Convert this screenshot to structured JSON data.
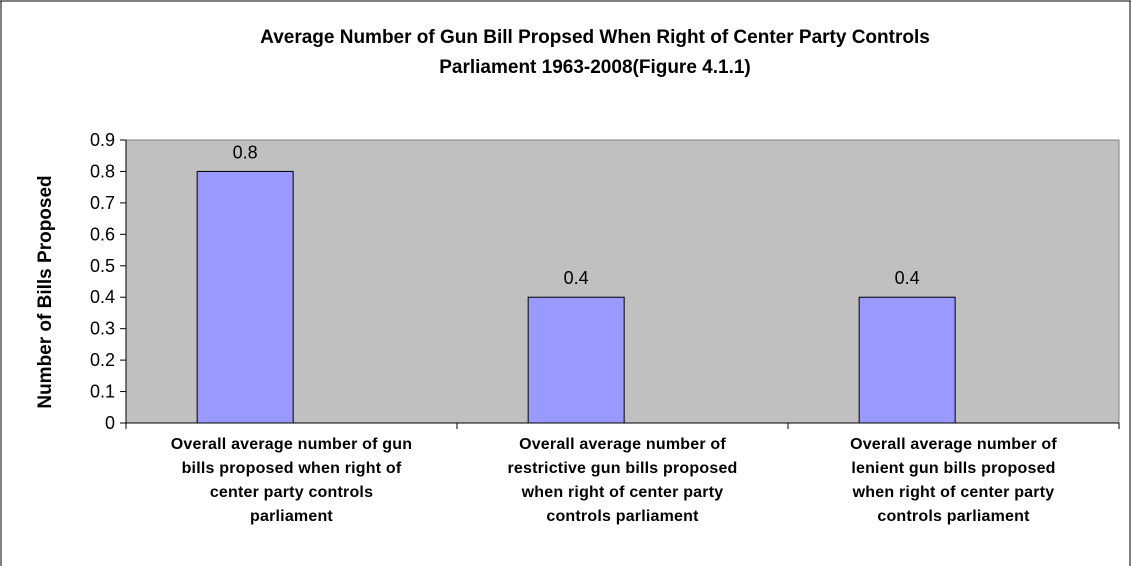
{
  "chart_data": {
    "type": "bar",
    "title_lines": [
      "Average Number of Gun Bill Propsed When Right of Center Party Controls",
      "Parliament 1963-2008(Figure 4.1.1)"
    ],
    "ylabel": "Number of Bills Proposed",
    "xlabel": "",
    "ylim": [
      0,
      0.9
    ],
    "y_ticks": [
      "0",
      "0.1",
      "0.2",
      "0.3",
      "0.4",
      "0.5",
      "0.6",
      "0.7",
      "0.8",
      "0.9"
    ],
    "categories": [
      [
        "Overall average number of gun",
        "bills proposed when right of",
        "center party controls",
        "parliament"
      ],
      [
        "Overall average number of",
        "restrictive gun bills proposed",
        "when right of center party",
        "controls parliament"
      ],
      [
        "Overall average number of",
        "lenient gun bills proposed",
        "when right of center party",
        "controls parliament"
      ]
    ],
    "values": [
      0.8,
      0.4,
      0.4
    ],
    "data_labels": [
      "0.8",
      "0.4",
      "0.4"
    ],
    "grid": false,
    "legend": "none",
    "colors": {
      "plot_background": "#c0c0c0",
      "bar_fill": "#9999ff",
      "bar_stroke": "#000000"
    }
  }
}
